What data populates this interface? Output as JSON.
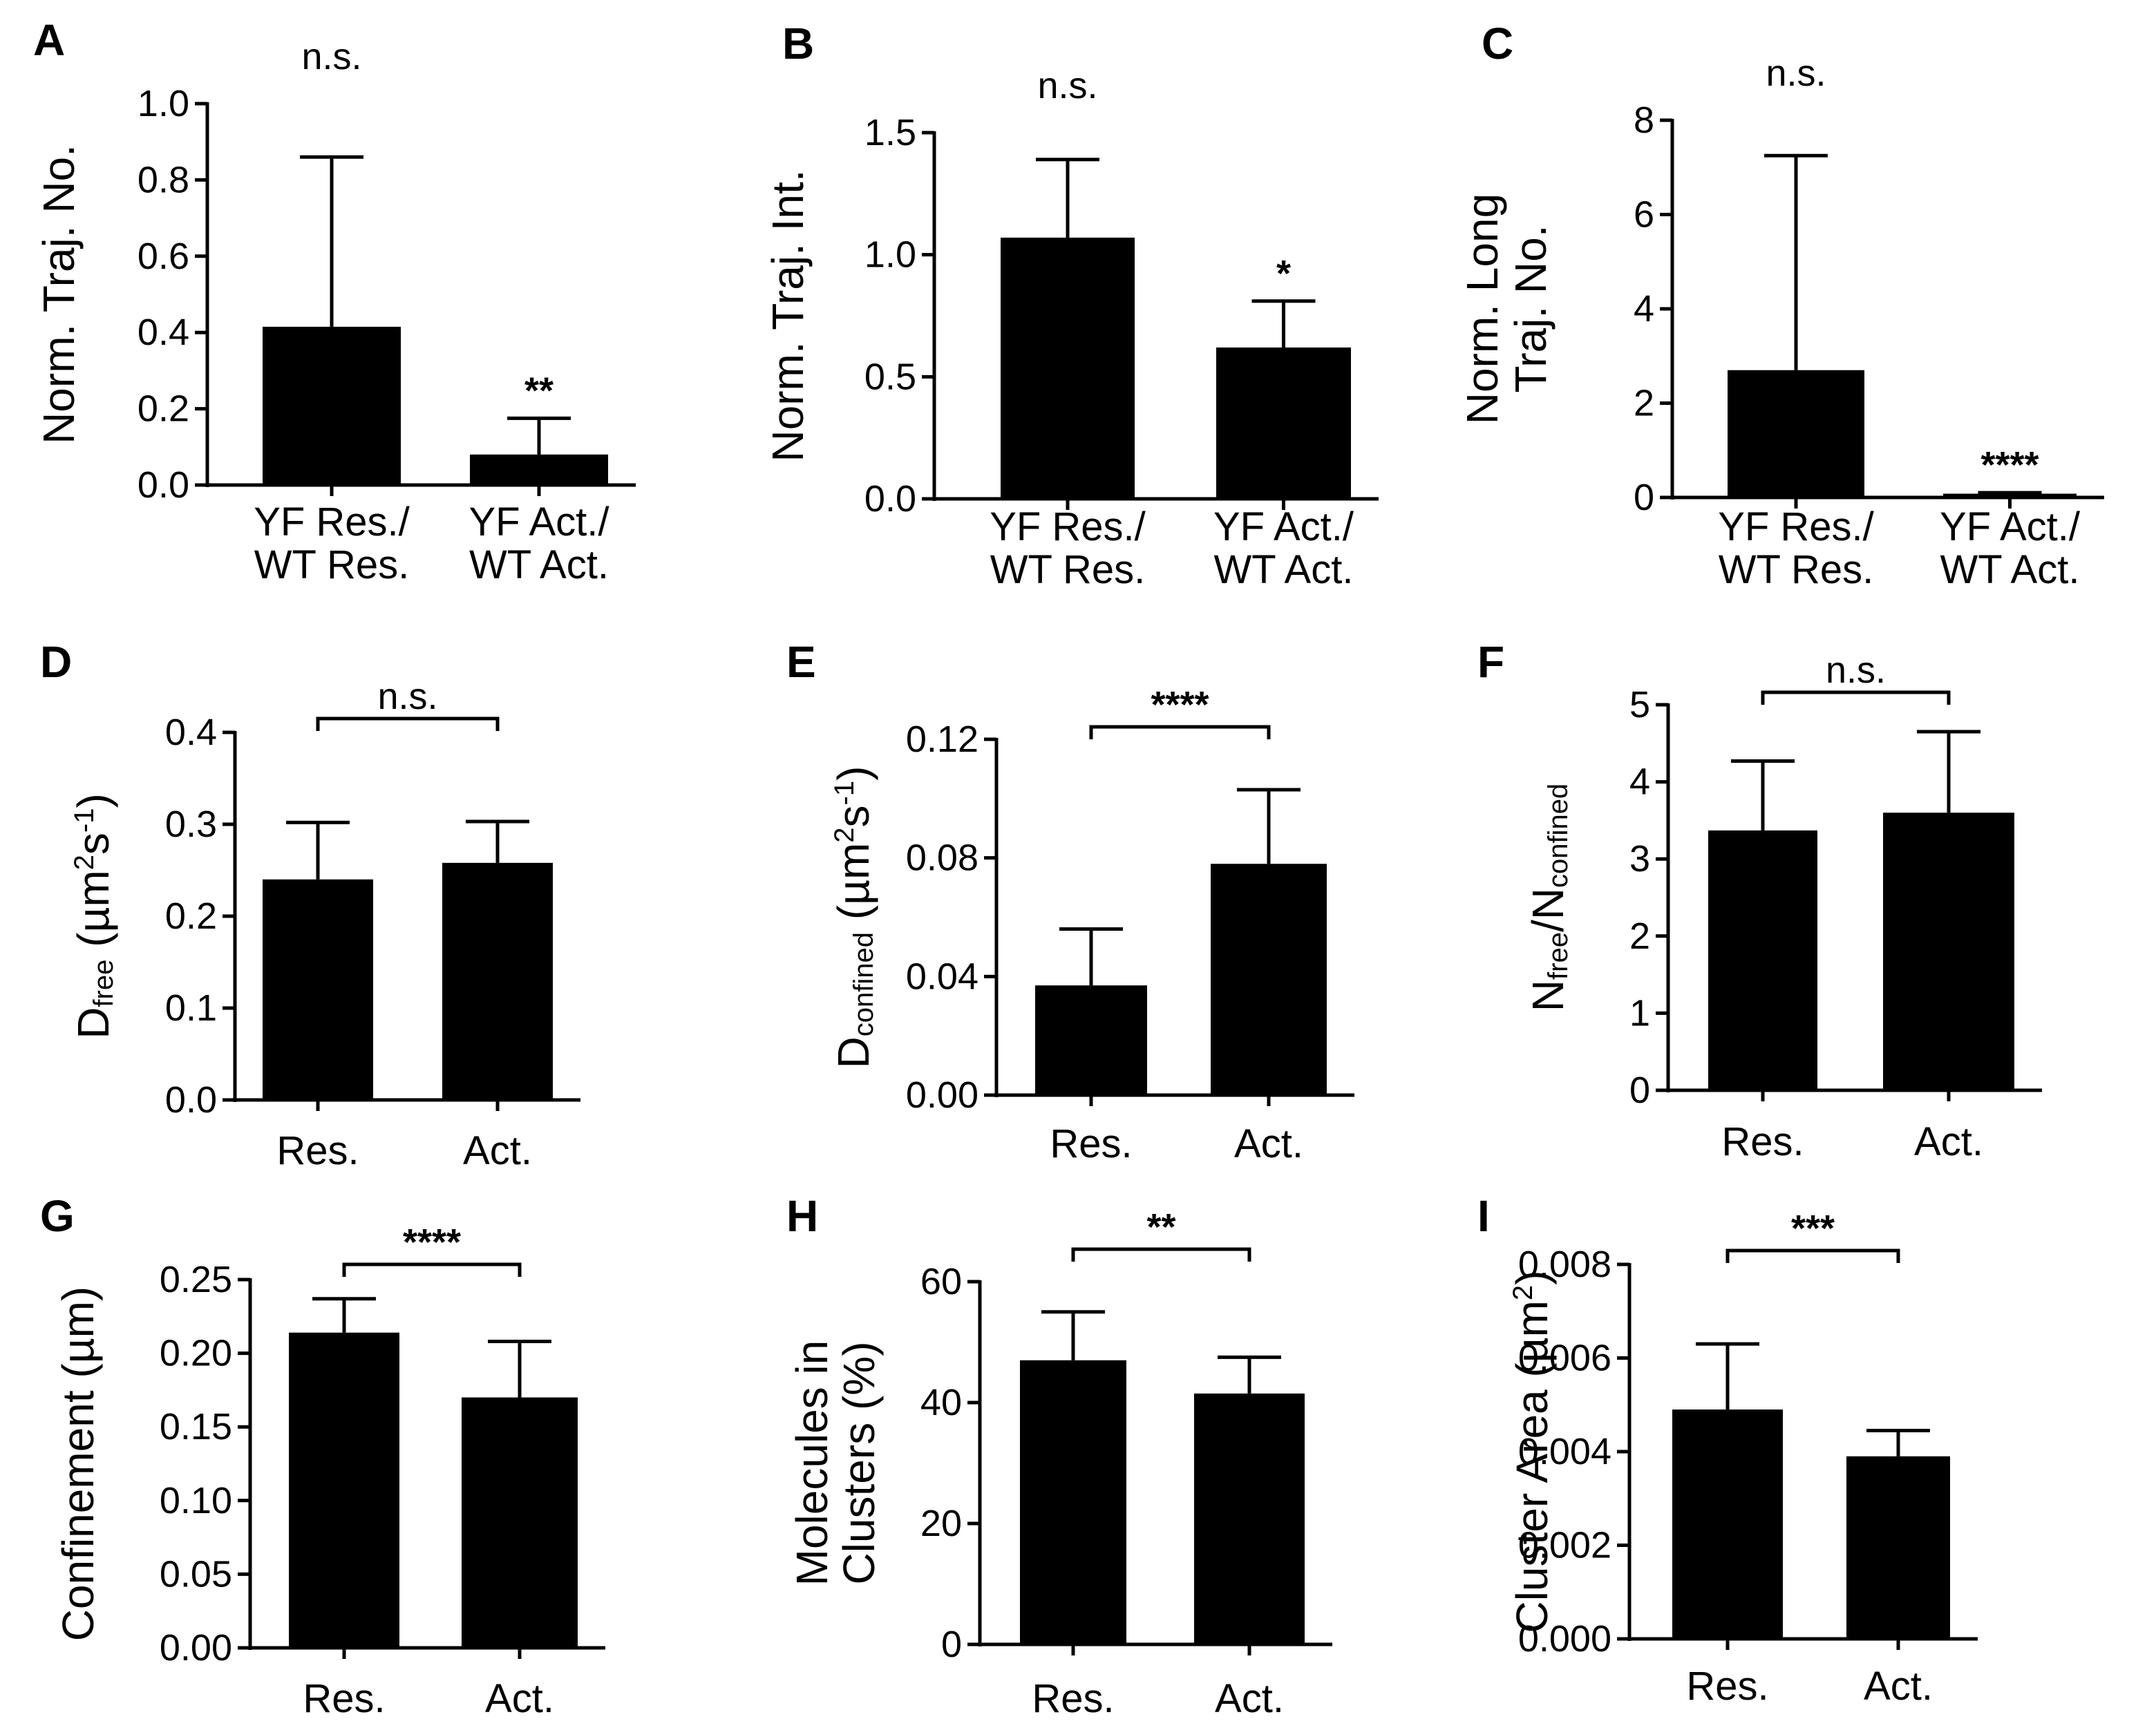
{
  "chart_data": [
    {
      "panel": "A",
      "type": "bar",
      "title": "",
      "ylabel": "Norm. Traj. No.",
      "ylim": [
        0,
        1.0
      ],
      "yticks": [
        "0.0",
        "0.2",
        "0.4",
        "0.6",
        "0.8",
        "1.0"
      ],
      "categories": [
        [
          "YF Res./",
          "WT Res."
        ],
        [
          "YF Act./",
          "WT Act."
        ]
      ],
      "values": [
        0.415,
        0.08
      ],
      "errors_upper": [
        0.445,
        0.095
      ],
      "significance": [
        {
          "label": "n.s.",
          "type": "text",
          "bar": 0
        },
        {
          "label": "**",
          "type": "star",
          "bar": 1
        }
      ]
    },
    {
      "panel": "B",
      "type": "bar",
      "title": "",
      "ylabel": "Norm. Traj. Int.",
      "ylim": [
        0,
        1.5
      ],
      "yticks": [
        "0.0",
        "0.5",
        "1.0",
        "1.5"
      ],
      "categories": [
        [
          "YF Res./",
          "WT Res."
        ],
        [
          "YF Act./",
          "WT Act."
        ]
      ],
      "values": [
        1.07,
        0.62
      ],
      "errors_upper": [
        0.32,
        0.19
      ],
      "significance": [
        {
          "label": "n.s.",
          "type": "text",
          "bar": 0
        },
        {
          "label": "*",
          "type": "star",
          "bar": 1
        }
      ]
    },
    {
      "panel": "C",
      "type": "bar",
      "title": "",
      "ylabel": [
        "Norm. Long",
        "Traj. No."
      ],
      "ylim": [
        0,
        8
      ],
      "yticks": [
        "0",
        "2",
        "4",
        "6",
        "8"
      ],
      "categories": [
        [
          "YF Res./",
          "WT Res."
        ],
        [
          "YF Act./",
          "WT Act."
        ]
      ],
      "values": [
        2.7,
        0.08
      ],
      "errors_upper": [
        4.55,
        0.02
      ],
      "significance": [
        {
          "label": "n.s.",
          "type": "text",
          "bar": 0
        },
        {
          "label": "****",
          "type": "star",
          "bar": 1
        }
      ]
    },
    {
      "panel": "D",
      "type": "bar",
      "title": "",
      "ylabel": {
        "main": "D",
        "sub": "free",
        "unit": " (µm",
        "sup1": "2",
        "mid": "s",
        "sup2": "-1",
        "end": ")"
      },
      "ylim": [
        0,
        0.4
      ],
      "yticks": [
        "0.0",
        "0.1",
        "0.2",
        "0.3",
        "0.4"
      ],
      "categories": [
        [
          "Res."
        ],
        [
          "Act."
        ]
      ],
      "values": [
        0.24,
        0.258
      ],
      "errors_upper": [
        0.062,
        0.045
      ],
      "significance": [
        {
          "label": "n.s.",
          "type": "bracket"
        }
      ]
    },
    {
      "panel": "E",
      "type": "bar",
      "title": "",
      "ylabel": {
        "main": "D",
        "sub": "confined",
        "unit": " (µm",
        "sup1": "2",
        "mid": "s",
        "sup2": "-1",
        "end": ")"
      },
      "ylim": [
        0,
        0.12
      ],
      "yticks": [
        "0.00",
        "0.04",
        "0.08",
        "0.12"
      ],
      "categories": [
        [
          "Res."
        ],
        [
          "Act."
        ]
      ],
      "values": [
        0.037,
        0.078
      ],
      "errors_upper": [
        0.019,
        0.025
      ],
      "significance": [
        {
          "label": "****",
          "type": "bracket"
        }
      ]
    },
    {
      "panel": "F",
      "type": "bar",
      "title": "",
      "ylabel": {
        "main": "N",
        "sub": "free",
        "slash": "/N",
        "sub2": "confined"
      },
      "ylim": [
        0,
        5
      ],
      "yticks": [
        "0",
        "1",
        "2",
        "3",
        "4",
        "5"
      ],
      "categories": [
        [
          "Res."
        ],
        [
          "Act."
        ]
      ],
      "values": [
        3.37,
        3.6
      ],
      "errors_upper": [
        0.9,
        1.05
      ],
      "significance": [
        {
          "label": "n.s.",
          "type": "bracket"
        }
      ]
    },
    {
      "panel": "G",
      "type": "bar",
      "title": "",
      "ylabel": "Confinement (µm)",
      "ylim": [
        0,
        0.25
      ],
      "yticks": [
        "0.00",
        "0.05",
        "0.10",
        "0.15",
        "0.20",
        "0.25"
      ],
      "categories": [
        [
          "Res."
        ],
        [
          "Act."
        ]
      ],
      "values": [
        0.214,
        0.17
      ],
      "errors_upper": [
        0.023,
        0.038
      ],
      "significance": [
        {
          "label": "****",
          "type": "bracket"
        }
      ]
    },
    {
      "panel": "H",
      "type": "bar",
      "title": "",
      "ylabel": [
        "Molecules in",
        "Clusters (%)"
      ],
      "ylim": [
        0,
        60
      ],
      "yticks": [
        "0",
        "20",
        "40",
        "60"
      ],
      "categories": [
        [
          "Res."
        ],
        [
          "Act."
        ]
      ],
      "values": [
        47,
        41.5
      ],
      "errors_upper": [
        8,
        6
      ],
      "significance": [
        {
          "label": "**",
          "type": "bracket"
        }
      ]
    },
    {
      "panel": "I",
      "type": "bar",
      "title": "",
      "ylabel": {
        "main": "Cluster Area (µm",
        "sup1": "2",
        "end": ")"
      },
      "ylim": [
        0,
        0.008
      ],
      "yticks": [
        "0.000",
        "0.002",
        "0.004",
        "0.006",
        "0.008"
      ],
      "categories": [
        [
          "Res."
        ],
        [
          "Act."
        ]
      ],
      "values": [
        0.0049,
        0.0039
      ],
      "errors_upper": [
        0.0014,
        0.00055
      ],
      "significance": [
        {
          "label": "***",
          "type": "bracket"
        }
      ]
    }
  ]
}
